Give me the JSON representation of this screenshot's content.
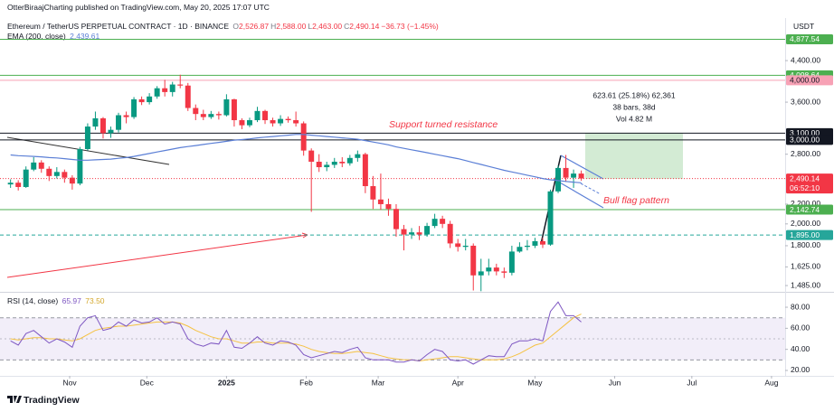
{
  "publisher": "OtterBiraajCharting published on TradingView.com, May 20, 2025 17:07 UTC",
  "footer": "TradingView",
  "chart_data": [
    {
      "type": "candlestick",
      "title": "Ethereum / TetherUS PERPETUAL CONTRACT · 1D · BINANCE",
      "ohlc_legend": [
        {
          "key": "O",
          "value": "2,526.87"
        },
        {
          "key": "H",
          "value": "2,588.00"
        },
        {
          "key": "L",
          "value": "2,463.00"
        },
        {
          "key": "C",
          "value": "2,490.14"
        }
      ],
      "change": "−36.73 (−1.45%)",
      "currency": "USDT",
      "log_scale": true,
      "grid": false,
      "up_color": "#089981",
      "down_color": "#f23645",
      "xlim": [
        -3.1,
        302.3
      ],
      "ylim": [
        1447,
        5356
      ],
      "xticks": [
        {
          "value": 24,
          "label": "Nov"
        },
        {
          "value": 54,
          "label": "Dec"
        },
        {
          "value": 85,
          "label": "2025"
        },
        {
          "value": 116,
          "label": "Feb"
        },
        {
          "value": 144,
          "label": "Mar"
        },
        {
          "value": 175,
          "label": "Apr"
        },
        {
          "value": 205,
          "label": "May"
        },
        {
          "value": 236,
          "label": "Jun"
        },
        {
          "value": 266,
          "label": "Jul"
        },
        {
          "value": 297,
          "label": "Aug"
        }
      ],
      "yticks": [
        {
          "value": 4400,
          "label": "4,400.00"
        },
        {
          "value": 3600,
          "label": "3,600.00"
        },
        {
          "value": 2800,
          "label": "2,800.00"
        },
        {
          "value": 2200,
          "label": "2,200.00"
        },
        {
          "value": 2000,
          "label": "2,000.00"
        },
        {
          "value": 1800,
          "label": "1,800.00"
        },
        {
          "value": 1625,
          "label": "1,625.00"
        },
        {
          "value": 1485,
          "label": "1,485.00"
        }
      ],
      "levels": [
        {
          "value": 4877.54,
          "label": "4,877.54",
          "color": "#4caf50",
          "text_color": "#ffffff",
          "style": "solid"
        },
        {
          "value": 4098.64,
          "label": "4,098.64",
          "color": "#4caf50",
          "text_color": "#ffffff",
          "style": "solid"
        },
        {
          "value": 4000,
          "label": "4,000.00",
          "color": "#f7a1b5",
          "text_color": "#131722",
          "style": "solid"
        },
        {
          "value": 3100,
          "label": "3,100.00",
          "color": "#131722",
          "text_color": "#ffffff",
          "style": "solid"
        },
        {
          "value": 3000,
          "label": "3,000.00",
          "color": "#131722",
          "text_color": "#ffffff",
          "style": "solid"
        },
        {
          "value": 2490.14,
          "label": "2,490.14",
          "color": "#f23645",
          "text_color": "#ffffff",
          "style": "dotted",
          "countdown": "06:52:10"
        },
        {
          "value": 2142.74,
          "label": "2,142.74",
          "color": "#4caf50",
          "text_color": "#ffffff",
          "style": "solid"
        },
        {
          "value": 1895,
          "label": "1,895.00",
          "color": "#26a69a",
          "text_color": "#ffffff",
          "style": "dashed"
        }
      ],
      "x": [
        1,
        4,
        7,
        10,
        13,
        16,
        19,
        22,
        25,
        28,
        31,
        34,
        37,
        40,
        43,
        46,
        49,
        52,
        55,
        58,
        61,
        64,
        67,
        70,
        73,
        76,
        79,
        82,
        85,
        88,
        91,
        94,
        97,
        100,
        103,
        106,
        109,
        112,
        115,
        118,
        121,
        124,
        127,
        130,
        133,
        136,
        139,
        142,
        145,
        148,
        151,
        154,
        157,
        160,
        163,
        166,
        169,
        172,
        175,
        178,
        181,
        184,
        187,
        190,
        193,
        196,
        199,
        202,
        205,
        208,
        211,
        214,
        217,
        220,
        223
      ],
      "open": [
        2420,
        2440,
        2390,
        2600,
        2690,
        2610,
        2520,
        2570,
        2500,
        2430,
        2870,
        3200,
        3330,
        3100,
        3150,
        3380,
        3350,
        3650,
        3600,
        3700,
        3850,
        3780,
        3920,
        3900,
        3500,
        3400,
        3350,
        3400,
        3380,
        3650,
        3300,
        3220,
        3300,
        3450,
        3300,
        3250,
        3320,
        3300,
        3250,
        2850,
        2700,
        2630,
        2660,
        2700,
        2680,
        2750,
        2800,
        2400,
        2250,
        2200,
        2150,
        1950,
        1900,
        1920,
        1900,
        1980,
        2050,
        2000,
        1820,
        1790,
        1800,
        1560,
        1590,
        1620,
        1590,
        1580,
        1750,
        1790,
        1800,
        1840,
        1810,
        2340,
        2620,
        2500,
        2550
      ],
      "high": [
        2480,
        2470,
        2640,
        2760,
        2720,
        2640,
        2630,
        2600,
        2530,
        2900,
        3250,
        3440,
        3350,
        3200,
        3420,
        3440,
        3690,
        3700,
        3760,
        3890,
        4010,
        3970,
        4110,
        3950,
        3560,
        3470,
        3450,
        3440,
        3740,
        3660,
        3330,
        3340,
        3520,
        3470,
        3340,
        3380,
        3360,
        3440,
        3280,
        2880,
        2800,
        2700,
        2750,
        2760,
        2790,
        2850,
        2820,
        2520,
        2550,
        2260,
        2200,
        1990,
        1960,
        1980,
        2010,
        2100,
        2080,
        2030,
        1860,
        1860,
        1820,
        1690,
        1690,
        1650,
        1620,
        1800,
        1830,
        1850,
        1870,
        1870,
        2360,
        2650,
        2790,
        2600,
        2588
      ],
      "low": [
        2380,
        2350,
        2380,
        2580,
        2560,
        2460,
        2490,
        2440,
        2360,
        2410,
        2850,
        3150,
        3020,
        3030,
        3110,
        3250,
        3320,
        3550,
        3560,
        3660,
        3700,
        3700,
        3850,
        3450,
        3300,
        3300,
        3320,
        3310,
        3360,
        3200,
        3160,
        3190,
        3270,
        3240,
        3200,
        3210,
        3260,
        3200,
        2780,
        2120,
        2570,
        2580,
        2620,
        2630,
        2650,
        2700,
        2320,
        2150,
        2140,
        2080,
        1880,
        1760,
        1860,
        1850,
        1880,
        1960,
        1960,
        1780,
        1750,
        1760,
        1450,
        1445,
        1560,
        1560,
        1540,
        1560,
        1740,
        1760,
        1780,
        1780,
        1800,
        2320,
        2450,
        2380,
        2463
      ],
      "close": [
        2440,
        2390,
        2600,
        2690,
        2610,
        2520,
        2570,
        2500,
        2430,
        2870,
        3200,
        3330,
        3100,
        3150,
        3380,
        3350,
        3650,
        3600,
        3700,
        3850,
        3780,
        3920,
        3900,
        3500,
        3400,
        3350,
        3400,
        3380,
        3650,
        3300,
        3220,
        3300,
        3450,
        3300,
        3250,
        3320,
        3300,
        3250,
        2850,
        2700,
        2630,
        2660,
        2700,
        2680,
        2750,
        2800,
        2400,
        2250,
        2200,
        2150,
        1950,
        1900,
        1920,
        1900,
        1980,
        2050,
        2000,
        1820,
        1790,
        1800,
        1560,
        1590,
        1620,
        1590,
        1580,
        1750,
        1790,
        1800,
        1840,
        1810,
        2340,
        2620,
        2500,
        2550,
        2490.14
      ],
      "ema": {
        "name": "EMA (200, close)",
        "legend_value": "2,439.61",
        "color": "#5b7fd6",
        "values": [
          2790,
          2780,
          2775,
          2770,
          2765,
          2755,
          2750,
          2740,
          2730,
          2720,
          2720,
          2725,
          2730,
          2735,
          2745,
          2755,
          2770,
          2790,
          2810,
          2830,
          2850,
          2870,
          2890,
          2905,
          2920,
          2935,
          2950,
          2965,
          2980,
          2995,
          3005,
          3015,
          3030,
          3040,
          3050,
          3060,
          3070,
          3080,
          3080,
          3070,
          3060,
          3050,
          3040,
          3030,
          3020,
          3010,
          2990,
          2970,
          2950,
          2930,
          2900,
          2880,
          2860,
          2840,
          2820,
          2800,
          2780,
          2760,
          2740,
          2715,
          2690,
          2665,
          2640,
          2615,
          2590,
          2570,
          2550,
          2530,
          2510,
          2490,
          2475,
          2465,
          2455,
          2447,
          2439.61
        ]
      },
      "annotations": [
        "Support turned resistance",
        "Bull flag pattern"
      ],
      "measure": [
        "623.61 (25.18%) 62,361",
        "38 bars, 38d",
        "Vol 4.82 M"
      ]
    },
    {
      "type": "line",
      "title": "RSI (14, close)",
      "ylim": [
        15.7,
        92.9
      ],
      "yticks": [
        {
          "value": 80,
          "label": "80.00"
        },
        {
          "value": 60,
          "label": "60.00"
        },
        {
          "value": 40,
          "label": "40.00"
        },
        {
          "value": 20,
          "label": "20.00"
        }
      ],
      "band": [
        30,
        70
      ],
      "midline": 50,
      "series": [
        {
          "name": "RSI",
          "legend_value": "65.97",
          "color": "#7e57c2",
          "values": [
            48,
            44,
            55,
            58,
            52,
            46,
            50,
            47,
            42,
            62,
            70,
            72,
            58,
            60,
            66,
            62,
            68,
            65,
            66,
            70,
            64,
            66,
            64,
            50,
            45,
            43,
            46,
            45,
            58,
            42,
            41,
            46,
            52,
            46,
            44,
            48,
            47,
            44,
            35,
            32,
            34,
            36,
            38,
            37,
            40,
            42,
            32,
            30,
            30,
            30,
            28,
            28,
            30,
            29,
            35,
            40,
            38,
            30,
            29,
            30,
            26,
            30,
            34,
            33,
            33,
            45,
            48,
            48,
            50,
            48,
            76,
            85,
            72,
            72,
            65.97
          ]
        },
        {
          "name": "RSI MA",
          "legend_value": "73.50",
          "color": "#f5c242",
          "values": [
            50,
            49,
            50,
            51,
            51,
            50,
            50,
            49,
            48,
            50,
            54,
            58,
            60,
            61,
            62,
            62,
            63,
            64,
            65,
            66,
            66,
            66,
            65,
            62,
            58,
            55,
            52,
            50,
            50,
            48,
            46,
            46,
            47,
            47,
            46,
            46,
            46,
            45,
            43,
            40,
            38,
            37,
            36,
            36,
            37,
            38,
            37,
            36,
            34,
            32,
            31,
            30,
            30,
            29,
            30,
            31,
            32,
            33,
            33,
            32,
            31,
            30,
            30,
            30,
            31,
            33,
            36,
            40,
            44,
            46,
            52,
            58,
            64,
            70,
            73.5
          ]
        }
      ]
    }
  ]
}
